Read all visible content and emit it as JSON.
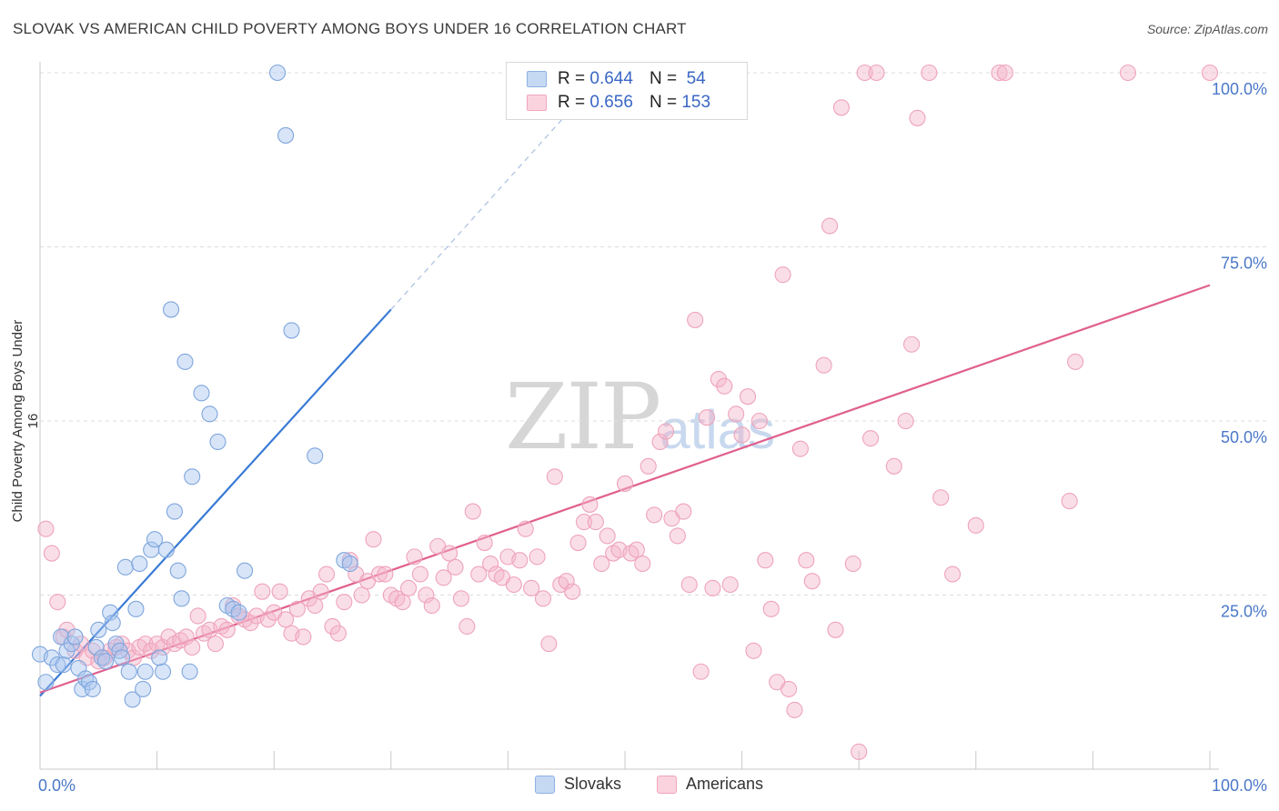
{
  "title": "SLOVAK VS AMERICAN CHILD POVERTY AMONG BOYS UNDER 16 CORRELATION CHART",
  "source": "Source: ZipAtlas.com",
  "watermark": {
    "zip": "ZIP",
    "atlas": "atlas"
  },
  "legend": [
    {
      "r_label": "R =",
      "r_value": "0.644",
      "n_label": "N =",
      "n_value": "54",
      "color": "#a9c6ef"
    },
    {
      "r_label": "R =",
      "r_value": "0.656",
      "n_label": "N =",
      "n_value": "153",
      "color": "#f5b6c9"
    }
  ],
  "bottom_legend": [
    {
      "label": "Slovaks",
      "color": "#a9c6ef"
    },
    {
      "label": "Americans",
      "color": "#f5b6c9"
    }
  ],
  "chart_data": {
    "type": "scatter",
    "title": "SLOVAK VS AMERICAN CHILD POVERTY AMONG BOYS UNDER 16 CORRELATION CHART",
    "xlabel": "",
    "ylabel": "Child Poverty Among Boys Under 16",
    "xlim": [
      0,
      100
    ],
    "ylim": [
      0,
      100
    ],
    "x_tick_labels": [
      "0.0%",
      "100.0%"
    ],
    "y_tick_labels": [
      "25.0%",
      "50.0%",
      "75.0%",
      "100.0%"
    ],
    "y_ticks": [
      25,
      50,
      75,
      100
    ],
    "grid": true,
    "legend_position": "top-center",
    "series": [
      {
        "name": "Slovaks",
        "color": "#3a7bd5",
        "fill": "#a9c6ef",
        "trend": {
          "x0": 0,
          "y0": 10.5,
          "x1": 30,
          "y1": 66,
          "dashed_to": [
            45,
            94
          ]
        },
        "points": [
          [
            0,
            16.5
          ],
          [
            0.5,
            12.5
          ],
          [
            1,
            16
          ],
          [
            1.5,
            15
          ],
          [
            1.8,
            19
          ],
          [
            2,
            15
          ],
          [
            2.3,
            17
          ],
          [
            2.7,
            18
          ],
          [
            3,
            19
          ],
          [
            3.3,
            14.5
          ],
          [
            3.6,
            11.5
          ],
          [
            3.9,
            13
          ],
          [
            4.2,
            12.5
          ],
          [
            4.5,
            11.5
          ],
          [
            4.8,
            17.5
          ],
          [
            5,
            20
          ],
          [
            5.3,
            16
          ],
          [
            5.6,
            15.5
          ],
          [
            6,
            22.5
          ],
          [
            6.2,
            21
          ],
          [
            6.5,
            18
          ],
          [
            6.8,
            17
          ],
          [
            7,
            16
          ],
          [
            7.3,
            29
          ],
          [
            7.6,
            14
          ],
          [
            7.9,
            10
          ],
          [
            8.2,
            23
          ],
          [
            8.5,
            29.5
          ],
          [
            8.8,
            11.5
          ],
          [
            9,
            14
          ],
          [
            9.5,
            31.5
          ],
          [
            9.8,
            33
          ],
          [
            10.2,
            16
          ],
          [
            10.5,
            14
          ],
          [
            10.8,
            31.5
          ],
          [
            11.2,
            66
          ],
          [
            11.5,
            37
          ],
          [
            11.8,
            28.5
          ],
          [
            12.1,
            24.5
          ],
          [
            12.4,
            58.5
          ],
          [
            12.8,
            14
          ],
          [
            13,
            42
          ],
          [
            13.8,
            54
          ],
          [
            14.5,
            51
          ],
          [
            15.2,
            47
          ],
          [
            16,
            23.5
          ],
          [
            16.5,
            23
          ],
          [
            17,
            22.5
          ],
          [
            17.5,
            28.5
          ],
          [
            20.3,
            100
          ],
          [
            21,
            91
          ],
          [
            21.5,
            63
          ],
          [
            23.5,
            45
          ],
          [
            26,
            30
          ],
          [
            26.5,
            29.5
          ]
        ]
      },
      {
        "name": "Americans",
        "color": "#e0608e",
        "fill": "#f5b6c9",
        "trend": {
          "x0": 0,
          "y0": 11,
          "x1": 100,
          "y1": 69.5
        },
        "points": [
          [
            0.5,
            34.5
          ],
          [
            1,
            31
          ],
          [
            1.5,
            24
          ],
          [
            2,
            19
          ],
          [
            2.3,
            20
          ],
          [
            3,
            17
          ],
          [
            3.5,
            18
          ],
          [
            4,
            16
          ],
          [
            4.5,
            17
          ],
          [
            5,
            15.5
          ],
          [
            5.5,
            16
          ],
          [
            6,
            17
          ],
          [
            6.5,
            17.5
          ],
          [
            7,
            18
          ],
          [
            7.5,
            17
          ],
          [
            8,
            16
          ],
          [
            8.5,
            17.5
          ],
          [
            9,
            18
          ],
          [
            9.5,
            17
          ],
          [
            10,
            18
          ],
          [
            10.5,
            17.5
          ],
          [
            11,
            19
          ],
          [
            11.5,
            18
          ],
          [
            12,
            18.5
          ],
          [
            12.5,
            19
          ],
          [
            13,
            17.5
          ],
          [
            13.5,
            22
          ],
          [
            14,
            19.5
          ],
          [
            14.5,
            20
          ],
          [
            15,
            18
          ],
          [
            15.5,
            20.5
          ],
          [
            16,
            20
          ],
          [
            16.5,
            23.5
          ],
          [
            17,
            22
          ],
          [
            17.5,
            21.5
          ],
          [
            18,
            21
          ],
          [
            18.5,
            22
          ],
          [
            19,
            25.5
          ],
          [
            19.5,
            21.5
          ],
          [
            20,
            22.5
          ],
          [
            20.5,
            25.5
          ],
          [
            21,
            21.5
          ],
          [
            21.5,
            19.5
          ],
          [
            22,
            23
          ],
          [
            22.5,
            19
          ],
          [
            23,
            24.5
          ],
          [
            23.5,
            23.5
          ],
          [
            24,
            25.5
          ],
          [
            24.5,
            28
          ],
          [
            25,
            20.5
          ],
          [
            25.5,
            19.5
          ],
          [
            26,
            24
          ],
          [
            26.5,
            30
          ],
          [
            27,
            28
          ],
          [
            27.5,
            25
          ],
          [
            28,
            27
          ],
          [
            28.5,
            33
          ],
          [
            29,
            28
          ],
          [
            29.5,
            28
          ],
          [
            30,
            25
          ],
          [
            30.5,
            24.5
          ],
          [
            31,
            24
          ],
          [
            31.5,
            26
          ],
          [
            32,
            30.5
          ],
          [
            32.5,
            28
          ],
          [
            33,
            25
          ],
          [
            33.5,
            23.5
          ],
          [
            34,
            32
          ],
          [
            34.5,
            27.5
          ],
          [
            35,
            31
          ],
          [
            35.5,
            29
          ],
          [
            36,
            24.5
          ],
          [
            36.5,
            20.5
          ],
          [
            37,
            37
          ],
          [
            37.5,
            28
          ],
          [
            38,
            32.5
          ],
          [
            38.5,
            29.5
          ],
          [
            39,
            28
          ],
          [
            39.5,
            27.5
          ],
          [
            40,
            30.5
          ],
          [
            40.5,
            26.5
          ],
          [
            41,
            30
          ],
          [
            41.5,
            34.5
          ],
          [
            42,
            26
          ],
          [
            42.5,
            30.5
          ],
          [
            43,
            24.5
          ],
          [
            43.5,
            18
          ],
          [
            44,
            42
          ],
          [
            44.5,
            26.5
          ],
          [
            45,
            27
          ],
          [
            45.5,
            25.5
          ],
          [
            46,
            32.5
          ],
          [
            46.5,
            35.5
          ],
          [
            47,
            38
          ],
          [
            47.5,
            35.5
          ],
          [
            48,
            29.5
          ],
          [
            48.5,
            33.5
          ],
          [
            49,
            31
          ],
          [
            49.5,
            31.5
          ],
          [
            50,
            41
          ],
          [
            50.5,
            31
          ],
          [
            51,
            31.5
          ],
          [
            51.5,
            29.5
          ],
          [
            52,
            43.5
          ],
          [
            52.5,
            36.5
          ],
          [
            53,
            47
          ],
          [
            53.5,
            48.5
          ],
          [
            54,
            36
          ],
          [
            54.5,
            33.5
          ],
          [
            55,
            37
          ],
          [
            55.5,
            26.5
          ],
          [
            56,
            64.5
          ],
          [
            56.5,
            14
          ],
          [
            57,
            50.5
          ],
          [
            57.5,
            26
          ],
          [
            58,
            56
          ],
          [
            58.5,
            55
          ],
          [
            59,
            26.5
          ],
          [
            59.5,
            51
          ],
          [
            60,
            48
          ],
          [
            60.5,
            53.5
          ],
          [
            61,
            17
          ],
          [
            61.5,
            50
          ],
          [
            62,
            30
          ],
          [
            62.5,
            23
          ],
          [
            63,
            12.5
          ],
          [
            63.5,
            71
          ],
          [
            64,
            11.5
          ],
          [
            64.5,
            8.5
          ],
          [
            65,
            46
          ],
          [
            65.5,
            30
          ],
          [
            66,
            27
          ],
          [
            67,
            58
          ],
          [
            67.5,
            78
          ],
          [
            68,
            20
          ],
          [
            68.5,
            95
          ],
          [
            69.5,
            29.5
          ],
          [
            70,
            2.5
          ],
          [
            70.5,
            100
          ],
          [
            71,
            47.5
          ],
          [
            71.5,
            100
          ],
          [
            73,
            43.5
          ],
          [
            74,
            50
          ],
          [
            74.5,
            61
          ],
          [
            75,
            93.5
          ],
          [
            76,
            100
          ],
          [
            77,
            39
          ],
          [
            78,
            28
          ],
          [
            80,
            35
          ],
          [
            82,
            100
          ],
          [
            82.5,
            100
          ],
          [
            88,
            38.5
          ],
          [
            88.5,
            58.5
          ],
          [
            93,
            100
          ],
          [
            100,
            100
          ]
        ]
      }
    ]
  }
}
